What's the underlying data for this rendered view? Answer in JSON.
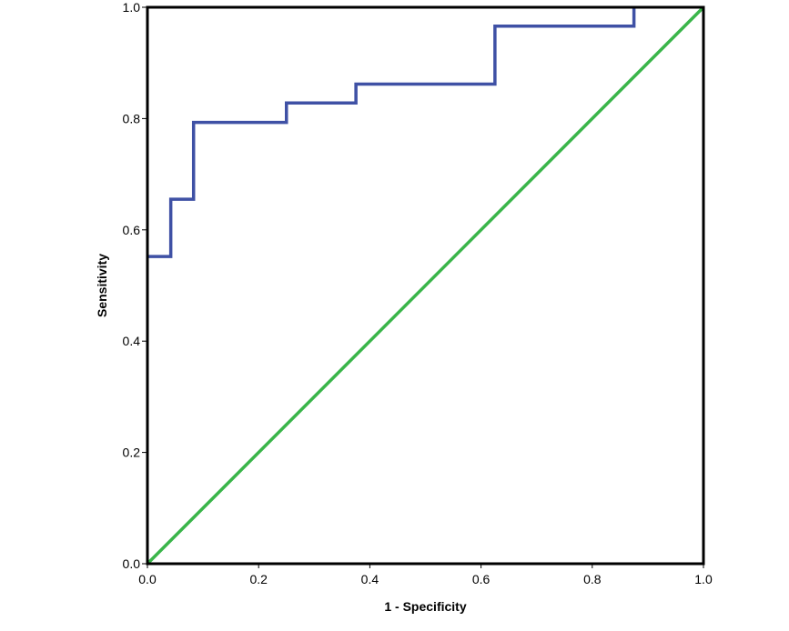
{
  "chart_data": {
    "type": "line",
    "xlabel": "1 - Specificity",
    "ylabel": "Sensitivity",
    "xlim": [
      0,
      1
    ],
    "ylim": [
      0,
      1
    ],
    "x_ticks": [
      "0.0",
      "0.2",
      "0.4",
      "0.6",
      "0.8",
      "1.0"
    ],
    "y_ticks": [
      "0.0",
      "0.2",
      "0.4",
      "0.6",
      "0.8",
      "1.0"
    ],
    "grid": false,
    "series": [
      {
        "color": "#3f51a5",
        "x": [
          0,
          0.042,
          0.042,
          0.083,
          0.083,
          0.25,
          0.25,
          0.375,
          0.375,
          0.625,
          0.625,
          0.875,
          0.875
        ],
        "y": [
          0.552,
          0.552,
          0.655,
          0.655,
          0.793,
          0.793,
          0.828,
          0.828,
          0.862,
          0.862,
          0.966,
          0.966,
          1.0
        ]
      },
      {
        "color": "#3ab54a",
        "x": [
          0,
          1
        ],
        "y": [
          0,
          1
        ]
      }
    ]
  }
}
